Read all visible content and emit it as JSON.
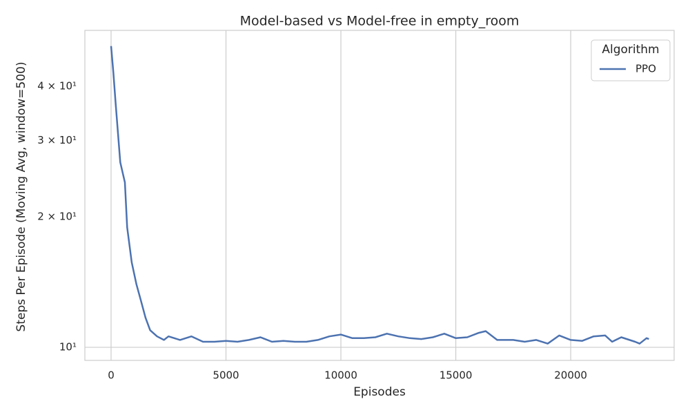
{
  "chart_data": {
    "type": "line",
    "title": "Model-based vs Model-free in empty_room",
    "x_label": "Episodes",
    "y_label": "Steps Per Episode (Moving Avg, window=500)",
    "log_y": true,
    "grid": true,
    "legend_title": "Algorithm",
    "legend_position": "upper-right",
    "xlim": [
      -1140,
      24500
    ],
    "ylim": [
      9.33,
      53.8
    ],
    "xticks": [
      0,
      5000,
      10000,
      15000,
      20000
    ],
    "yticks": [
      {
        "value": 10,
        "label": "10¹"
      },
      {
        "value": 20,
        "label": "2 × 10¹"
      },
      {
        "value": 30,
        "label": "3 × 10¹"
      },
      {
        "value": 40,
        "label": "4 × 10¹"
      }
    ],
    "x": [
      0,
      100,
      200,
      400,
      600,
      700,
      900,
      1100,
      1300,
      1500,
      1700,
      2000,
      2300,
      2500,
      3000,
      3500,
      4000,
      4500,
      5000,
      5500,
      6000,
      6500,
      7000,
      7500,
      8000,
      8500,
      9000,
      9500,
      10000,
      10500,
      11000,
      11500,
      12000,
      12500,
      13000,
      13500,
      14000,
      14500,
      15000,
      15500,
      16000,
      16300,
      16800,
      17500,
      18000,
      18500,
      19000,
      19500,
      20000,
      20500,
      21000,
      21500,
      21800,
      22200,
      22800,
      23000,
      23300,
      23400
    ],
    "series": [
      {
        "name": "PPO",
        "color": "#4c72b0",
        "values": [
          49.5,
          43,
          36.5,
          26.7,
          24,
          18.9,
          15.7,
          14,
          12.8,
          11.7,
          10.95,
          10.6,
          10.4,
          10.6,
          10.4,
          10.6,
          10.3,
          10.3,
          10.35,
          10.3,
          10.4,
          10.55,
          10.3,
          10.35,
          10.3,
          10.3,
          10.4,
          10.6,
          10.7,
          10.5,
          10.5,
          10.55,
          10.75,
          10.6,
          10.5,
          10.45,
          10.55,
          10.75,
          10.5,
          10.55,
          10.8,
          10.9,
          10.4,
          10.4,
          10.3,
          10.4,
          10.2,
          10.65,
          10.4,
          10.35,
          10.6,
          10.65,
          10.3,
          10.55,
          10.3,
          10.2,
          10.5,
          10.45
        ]
      }
    ]
  }
}
